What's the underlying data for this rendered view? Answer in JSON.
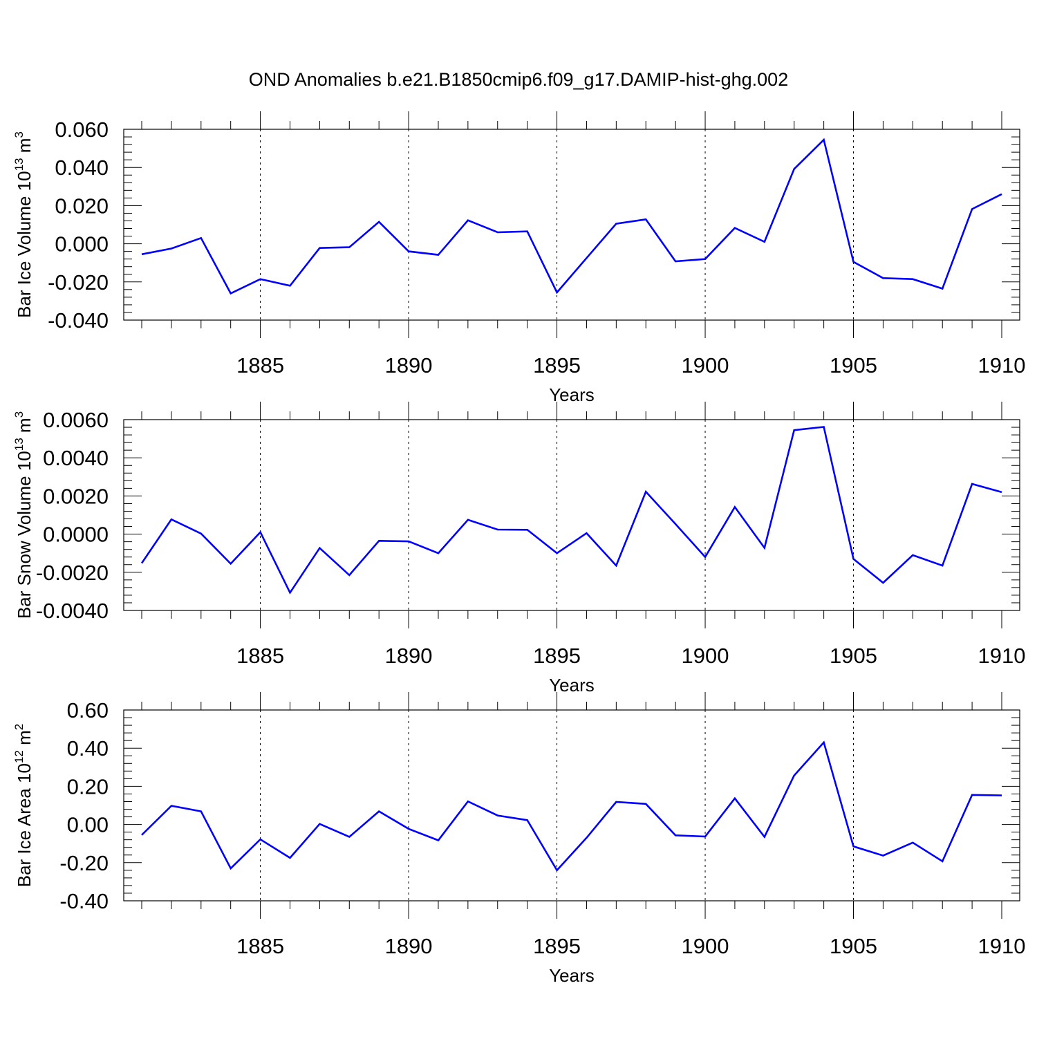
{
  "title": "OND Anomalies b.e21.B1850cmip6.f09_g17.DAMIP-hist-ghg.002",
  "line_color": "#0000ff",
  "chart_data": [
    {
      "type": "line",
      "xlabel": "Years",
      "ylabel": "Bar Ice Volume 10",
      "ylabel_exp": "13",
      "ylabel_unit": "m",
      "ylabel_unit_exp": "3",
      "xlim": [
        1880.6,
        1910
      ],
      "ylim": [
        -0.04,
        0.06
      ],
      "yticks": [
        -0.04,
        -0.02,
        0.0,
        0.02,
        0.04,
        0.06
      ],
      "ytick_labels": [
        "-0.040",
        "-0.020",
        "0.000",
        "0.020",
        "0.040",
        "0.060"
      ],
      "xticks": [
        1885,
        1890,
        1895,
        1900,
        1905,
        1910
      ],
      "xtick_labels": [
        "1885",
        "1890",
        "1895",
        "1900",
        "1905",
        "1910"
      ],
      "x": [
        1881,
        1882,
        1883,
        1884,
        1885,
        1886,
        1887,
        1888,
        1889,
        1890,
        1891,
        1892,
        1893,
        1894,
        1895,
        1896,
        1897,
        1898,
        1899,
        1900,
        1901,
        1902,
        1903,
        1904,
        1905,
        1906,
        1907,
        1908,
        1909,
        1910
      ],
      "values": [
        -0.0055,
        -0.0025,
        0.003,
        -0.026,
        -0.0185,
        -0.022,
        -0.0022,
        -0.0018,
        0.0115,
        -0.004,
        -0.0058,
        0.0123,
        0.006,
        0.0065,
        -0.0255,
        -0.0075,
        0.0105,
        0.0128,
        -0.0092,
        -0.008,
        0.0083,
        0.001,
        0.0392,
        0.0545,
        -0.0095,
        -0.018,
        -0.0185,
        -0.0235,
        0.0182,
        0.026
      ]
    },
    {
      "type": "line",
      "xlabel": "Years",
      "ylabel": "Bar Snow Volume 10",
      "ylabel_exp": "13",
      "ylabel_unit": "m",
      "ylabel_unit_exp": "3",
      "xlim": [
        1880.6,
        1910
      ],
      "ylim": [
        -0.004,
        0.006
      ],
      "yticks": [
        -0.004,
        -0.002,
        0.0,
        0.002,
        0.004,
        0.006
      ],
      "ytick_labels": [
        "-0.0040",
        "-0.0020",
        "0.0000",
        "0.0020",
        "0.0040",
        "0.0060"
      ],
      "xticks": [
        1885,
        1890,
        1895,
        1900,
        1905,
        1910
      ],
      "xtick_labels": [
        "1885",
        "1890",
        "1895",
        "1900",
        "1905",
        "1910"
      ],
      "x": [
        1881,
        1882,
        1883,
        1884,
        1885,
        1886,
        1887,
        1888,
        1889,
        1890,
        1891,
        1892,
        1893,
        1894,
        1895,
        1896,
        1897,
        1898,
        1899,
        1900,
        1901,
        1902,
        1903,
        1904,
        1905,
        1906,
        1907,
        1908,
        1909,
        1910
      ],
      "values": [
        -0.00152,
        0.00077,
        3e-05,
        -0.00155,
        0.0001,
        -0.00307,
        -0.00073,
        -0.00215,
        -0.00035,
        -0.00038,
        -0.001,
        0.00075,
        0.00024,
        0.00023,
        -0.001,
        5e-05,
        -0.00165,
        0.00222,
        0.00053,
        -0.0012,
        0.00142,
        -0.00072,
        0.00545,
        0.00562,
        -0.0013,
        -0.00255,
        -0.0011,
        -0.00165,
        0.00263,
        0.0022
      ]
    },
    {
      "type": "line",
      "xlabel": "Years",
      "ylabel": "Bar Ice Area 10",
      "ylabel_exp": "12",
      "ylabel_unit": "m",
      "ylabel_unit_exp": "2",
      "xlim": [
        1880.6,
        1910
      ],
      "ylim": [
        -0.4,
        0.6
      ],
      "yticks": [
        -0.4,
        -0.2,
        0.0,
        0.2,
        0.4,
        0.6
      ],
      "ytick_labels": [
        "-0.40",
        "-0.20",
        "0.00",
        "0.20",
        "0.40",
        "0.60"
      ],
      "xticks": [
        1885,
        1890,
        1895,
        1900,
        1905,
        1910
      ],
      "xtick_labels": [
        "1885",
        "1890",
        "1895",
        "1900",
        "1905",
        "1910"
      ],
      "x": [
        1881,
        1882,
        1883,
        1884,
        1885,
        1886,
        1887,
        1888,
        1889,
        1890,
        1891,
        1892,
        1893,
        1894,
        1895,
        1896,
        1897,
        1898,
        1899,
        1900,
        1901,
        1902,
        1903,
        1904,
        1905,
        1906,
        1907,
        1908,
        1909,
        1910
      ],
      "values": [
        -0.055,
        0.098,
        0.069,
        -0.23,
        -0.078,
        -0.175,
        0.003,
        -0.065,
        0.069,
        -0.023,
        -0.083,
        0.121,
        0.047,
        0.023,
        -0.24,
        -0.07,
        0.118,
        0.108,
        -0.057,
        -0.063,
        0.137,
        -0.065,
        0.257,
        0.43,
        -0.115,
        -0.163,
        -0.095,
        -0.193,
        0.155,
        0.152
      ]
    }
  ]
}
